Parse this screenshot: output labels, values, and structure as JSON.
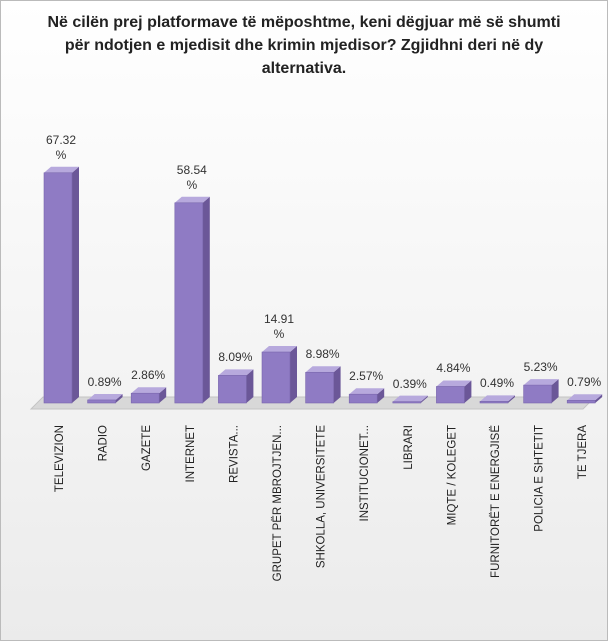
{
  "chart_data": {
    "type": "bar3d",
    "title": "Në cilën prej platformave të mëposhtme, keni dëgjuar më së shumti për ndotjen e mjedisit dhe krimin mjedisor? Zgjidhni deri në dy alternativa.",
    "categories": [
      "TELEVIZION",
      "RADIO",
      "GAZETE",
      "INTERNET",
      "REVISTA...",
      "GRUPET PËR MBROJTJEN...",
      "SHKOLLA, UNIVERSITETE",
      "INSTITUCIONET...",
      "LIBRARI",
      "MIQTE / KOLEGET",
      "FURNITORËT E ENERGJISË",
      "POLICIA E SHTETIT",
      "TE TJERA"
    ],
    "values": [
      67.32,
      0.89,
      2.86,
      58.54,
      8.09,
      14.91,
      8.98,
      2.57,
      0.39,
      4.84,
      0.49,
      5.23,
      0.79
    ],
    "value_labels": [
      "67.32 %",
      "0.89%",
      "2.86%",
      "58.54 %",
      "8.09%",
      "14.91 %",
      "8.98%",
      "2.57%",
      "0.39%",
      "4.84%",
      "0.49%",
      "5.23%",
      "0.79%"
    ],
    "color": "#8f7bc4"
  }
}
